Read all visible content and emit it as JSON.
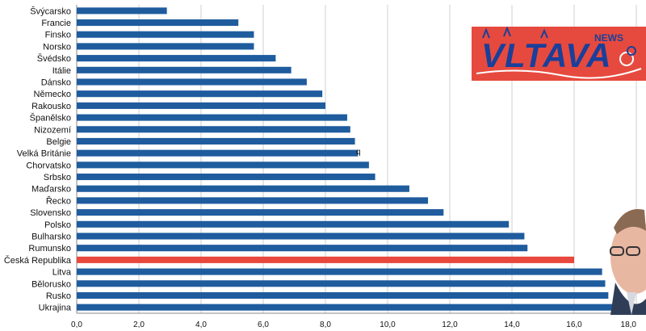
{
  "chart_data": {
    "type": "bar",
    "orientation": "horizontal",
    "categories": [
      "Švýcarsko",
      "Francie",
      "Finsko",
      "Norsko",
      "Švédsko",
      "Itálie",
      "Dánsko",
      "Německo",
      "Rakousko",
      "Španělsko",
      "Nizozemí",
      "Belgie",
      "Velká Británie",
      "Chorvatsko",
      "Srbsko",
      "Maďarsko",
      "Řecko",
      "Slovensko",
      "Polsko",
      "Bulharsko",
      "Rumunsko",
      "Česká Republika",
      "Litva",
      "Bělorusko",
      "Rusko",
      "Ukrajina"
    ],
    "values": [
      2.9,
      5.2,
      5.7,
      5.7,
      6.4,
      6.9,
      7.4,
      7.9,
      8.0,
      8.7,
      8.8,
      8.95,
      9.05,
      9.4,
      9.6,
      10.7,
      11.3,
      11.8,
      13.9,
      14.4,
      14.5,
      16.0,
      16.9,
      17.0,
      17.1,
      18.0
    ],
    "highlight": "Česká Republika",
    "xlim": [
      0,
      18
    ],
    "xticks": [
      "0,0",
      "2,0",
      "4,0",
      "6,0",
      "8,0",
      "10,0",
      "12,0",
      "14,0",
      "16,0",
      "18,0"
    ],
    "grid": "vertical",
    "bar_color": "#1f5c9e",
    "highlight_color": "#e8483d",
    "title": "",
    "xlabel": "",
    "ylabel": ""
  },
  "stray_mark": "q",
  "logo": {
    "name": "VLTAVA",
    "suffix": "NEWS",
    "background": "#e64a3e",
    "text_color": "#1a3f9a"
  }
}
